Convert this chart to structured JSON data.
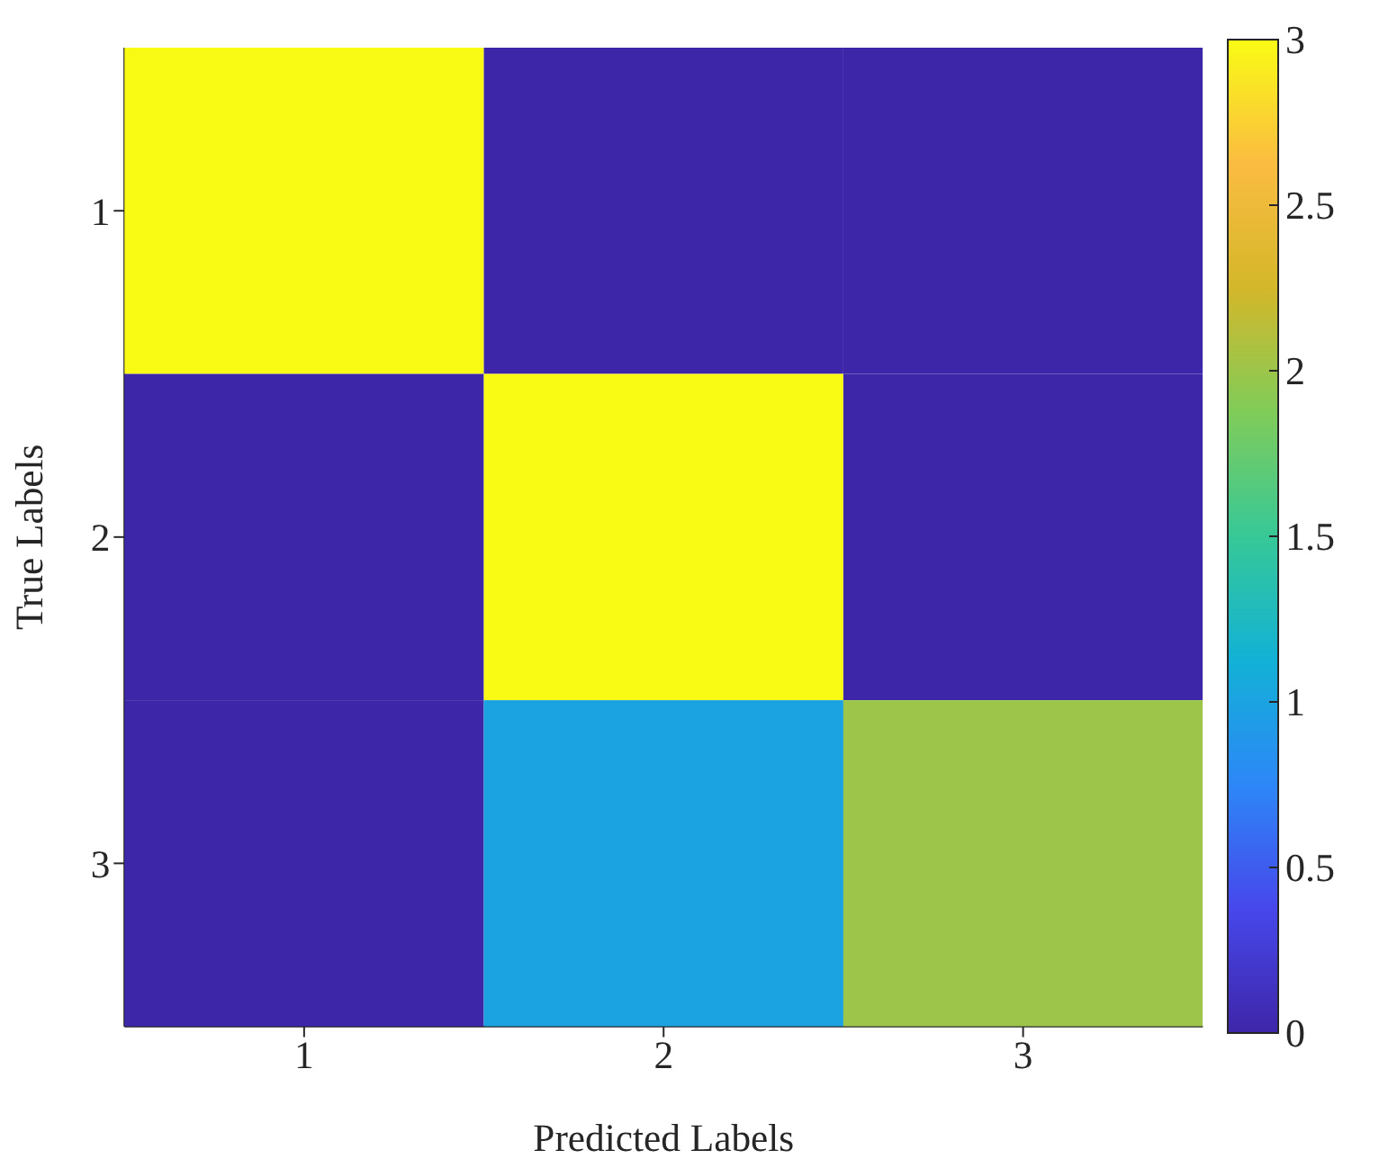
{
  "chart_data": {
    "type": "heatmap",
    "xlabel": "Predicted Labels",
    "ylabel": "True Labels",
    "categories": [
      "1",
      "2",
      "3"
    ],
    "y_categories": [
      "1",
      "2",
      "3"
    ],
    "cells": [
      [
        3,
        0,
        0
      ],
      [
        0,
        3,
        0
      ],
      [
        0,
        1,
        2
      ]
    ],
    "clim": [
      0,
      3
    ],
    "cticks": [
      0,
      0.5,
      1,
      1.5,
      2,
      2.5,
      3
    ]
  }
}
